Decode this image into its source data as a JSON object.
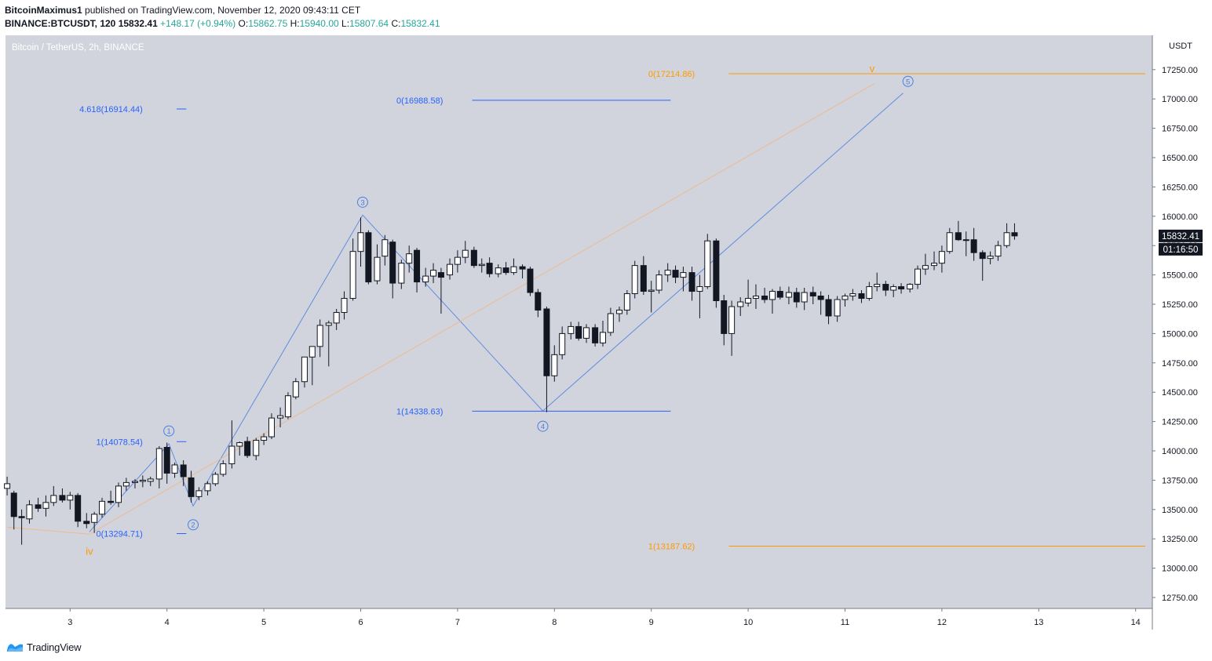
{
  "header": {
    "author": "BitcoinMaximus1",
    "published_text": "published on TradingView.com, November 12, 2020 09:43:11 CET",
    "symbol": "BINANCE:BTCUSDT, 120",
    "last": "15832.41",
    "change": "+148.17 (+0.94%)",
    "o_label": "O:",
    "o": "15862.75",
    "h_label": "H:",
    "h": "15940.00",
    "l_label": "L:",
    "l": "15807.64",
    "c_label": "C:",
    "c": "15832.41"
  },
  "footer": {
    "brand": "TradingView",
    "logo_icon": "tradingview-logo-icon"
  },
  "colors": {
    "plot_bg": "#d1d4dc",
    "up_body": "#ffffff",
    "down_body": "#131722",
    "wick": "#131722",
    "fib_blue": "#2962ff",
    "fib_orange": "#ff9800",
    "wave_blue": "#4a7fe0",
    "wave_orange": "#f2b680",
    "price_tag": "#131722"
  },
  "chart_data": {
    "type": "candlestick",
    "title": "Bitcoin / TetherUS, 2h, BINANCE",
    "currency": "USDT",
    "x_axis": {
      "unit": "day (Nov 2020)",
      "range": [
        2.35,
        14.1
      ],
      "ticks": [
        3,
        4,
        5,
        6,
        7,
        8,
        9,
        10,
        11,
        12,
        13,
        14
      ]
    },
    "y_axis": {
      "range": [
        12630,
        17500
      ],
      "ticks": [
        "12750.00",
        "13000.00",
        "13250.00",
        "13500.00",
        "13750.00",
        "14000.00",
        "14250.00",
        "14500.00",
        "14750.00",
        "15000.00",
        "15250.00",
        "15500.00",
        "15750.00",
        "16000.00",
        "16250.00",
        "16500.00",
        "16750.00",
        "17000.00",
        "17250.00"
      ]
    },
    "last_price_label": "15832.41",
    "countdown_label": "01:16:50",
    "candles": [
      [
        2.35,
        13680,
        13780,
        13620,
        13720
      ],
      [
        2.42,
        13640,
        13660,
        13330,
        13440
      ],
      [
        2.5,
        13440,
        13500,
        13200,
        13430
      ],
      [
        2.58,
        13420,
        13580,
        13380,
        13540
      ],
      [
        2.67,
        13540,
        13600,
        13480,
        13510
      ],
      [
        2.75,
        13510,
        13620,
        13440,
        13560
      ],
      [
        2.83,
        13560,
        13700,
        13530,
        13620
      ],
      [
        2.92,
        13620,
        13680,
        13560,
        13580
      ],
      [
        3.0,
        13580,
        13650,
        13500,
        13620
      ],
      [
        3.08,
        13620,
        13640,
        13350,
        13400
      ],
      [
        3.17,
        13400,
        13470,
        13340,
        13380
      ],
      [
        3.25,
        13390,
        13480,
        13300,
        13460
      ],
      [
        3.33,
        13460,
        13600,
        13430,
        13570
      ],
      [
        3.42,
        13570,
        13660,
        13540,
        13560
      ],
      [
        3.5,
        13560,
        13730,
        13520,
        13700
      ],
      [
        3.58,
        13700,
        13770,
        13660,
        13730
      ],
      [
        3.67,
        13730,
        13760,
        13680,
        13740
      ],
      [
        3.75,
        13740,
        13790,
        13690,
        13750
      ],
      [
        3.83,
        13740,
        13780,
        13700,
        13760
      ],
      [
        3.92,
        13760,
        14040,
        13680,
        14020
      ],
      [
        4.0,
        14030,
        14070,
        13720,
        13810
      ],
      [
        4.08,
        13810,
        13900,
        13770,
        13880
      ],
      [
        4.17,
        13880,
        13920,
        13700,
        13780
      ],
      [
        4.25,
        13770,
        13830,
        13560,
        13610
      ],
      [
        4.33,
        13610,
        13690,
        13580,
        13660
      ],
      [
        4.42,
        13660,
        13740,
        13620,
        13720
      ],
      [
        4.5,
        13720,
        13820,
        13700,
        13800
      ],
      [
        4.58,
        13800,
        13920,
        13780,
        13890
      ],
      [
        4.67,
        13890,
        14260,
        13850,
        14040
      ],
      [
        4.75,
        14040,
        14080,
        13960,
        14070
      ],
      [
        4.83,
        14080,
        14120,
        13940,
        13960
      ],
      [
        4.92,
        13960,
        14110,
        13920,
        14090
      ],
      [
        5.0,
        14090,
        14150,
        14050,
        14120
      ],
      [
        5.08,
        14120,
        14320,
        14100,
        14280
      ],
      [
        5.17,
        14280,
        14370,
        14200,
        14300
      ],
      [
        5.25,
        14290,
        14500,
        14270,
        14470
      ],
      [
        5.33,
        14460,
        14620,
        14440,
        14590
      ],
      [
        5.42,
        14590,
        14790,
        14540,
        14800
      ],
      [
        5.5,
        14800,
        14880,
        14560,
        14890
      ],
      [
        5.58,
        14890,
        15120,
        14800,
        15070
      ],
      [
        5.67,
        15070,
        15110,
        14720,
        15090
      ],
      [
        5.75,
        15090,
        15210,
        15030,
        15180
      ],
      [
        5.83,
        15180,
        15360,
        15120,
        15300
      ],
      [
        5.92,
        15300,
        15810,
        15280,
        15700
      ],
      [
        6.0,
        15700,
        15990,
        15570,
        15860
      ],
      [
        6.08,
        15860,
        15880,
        15420,
        15440
      ],
      [
        6.17,
        15450,
        15760,
        15420,
        15650
      ],
      [
        6.25,
        15660,
        15840,
        15580,
        15800
      ],
      [
        6.33,
        15780,
        15800,
        15300,
        15430
      ],
      [
        6.42,
        15430,
        15630,
        15380,
        15600
      ],
      [
        6.5,
        15600,
        15750,
        15520,
        15680
      ],
      [
        6.58,
        15710,
        15730,
        15350,
        15440
      ],
      [
        6.67,
        15440,
        15560,
        15400,
        15490
      ],
      [
        6.75,
        15490,
        15600,
        15430,
        15540
      ],
      [
        6.83,
        15520,
        15560,
        15170,
        15480
      ],
      [
        6.92,
        15500,
        15640,
        15460,
        15590
      ],
      [
        7.0,
        15590,
        15710,
        15520,
        15650
      ],
      [
        7.08,
        15650,
        15790,
        15600,
        15710
      ],
      [
        7.17,
        15710,
        15740,
        15560,
        15580
      ],
      [
        7.25,
        15580,
        15640,
        15520,
        15590
      ],
      [
        7.33,
        15600,
        15650,
        15480,
        15510
      ],
      [
        7.42,
        15510,
        15590,
        15480,
        15560
      ],
      [
        7.5,
        15560,
        15610,
        15500,
        15520
      ],
      [
        7.58,
        15520,
        15640,
        15500,
        15570
      ],
      [
        7.67,
        15570,
        15590,
        15470,
        15550
      ],
      [
        7.75,
        15550,
        15570,
        15320,
        15350
      ],
      [
        7.83,
        15350,
        15380,
        15140,
        15200
      ],
      [
        7.92,
        15210,
        15230,
        14330,
        14640
      ],
      [
        8.0,
        14640,
        14900,
        14590,
        14820
      ],
      [
        8.08,
        14820,
        15060,
        14780,
        15000
      ],
      [
        8.17,
        15000,
        15100,
        14950,
        15060
      ],
      [
        8.25,
        15060,
        15100,
        14940,
        14960
      ],
      [
        8.33,
        14960,
        15080,
        14920,
        15050
      ],
      [
        8.42,
        15050,
        15080,
        14890,
        14920
      ],
      [
        8.5,
        14920,
        15110,
        14890,
        15010
      ],
      [
        8.58,
        15010,
        15220,
        14980,
        15170
      ],
      [
        8.67,
        15170,
        15230,
        15100,
        15200
      ],
      [
        8.75,
        15200,
        15370,
        15160,
        15340
      ],
      [
        8.83,
        15340,
        15620,
        15300,
        15580
      ],
      [
        8.92,
        15580,
        15660,
        15330,
        15360
      ],
      [
        9.0,
        15360,
        15450,
        15180,
        15370
      ],
      [
        9.08,
        15370,
        15540,
        15340,
        15500
      ],
      [
        9.17,
        15500,
        15600,
        15440,
        15540
      ],
      [
        9.25,
        15540,
        15580,
        15430,
        15480
      ],
      [
        9.33,
        15480,
        15570,
        15360,
        15520
      ],
      [
        9.42,
        15520,
        15570,
        15280,
        15360
      ],
      [
        9.5,
        15360,
        15500,
        15130,
        15400
      ],
      [
        9.58,
        15400,
        15850,
        15380,
        15790
      ],
      [
        9.67,
        15790,
        15810,
        15220,
        15280
      ],
      [
        9.75,
        15280,
        15330,
        14900,
        15000
      ],
      [
        9.83,
        15000,
        15280,
        14810,
        15230
      ],
      [
        9.92,
        15230,
        15310,
        15150,
        15270
      ],
      [
        10.0,
        15260,
        15460,
        15230,
        15300
      ],
      [
        10.08,
        15300,
        15420,
        15210,
        15320
      ],
      [
        10.17,
        15320,
        15390,
        15260,
        15290
      ],
      [
        10.25,
        15290,
        15380,
        15170,
        15360
      ],
      [
        10.33,
        15360,
        15400,
        15290,
        15310
      ],
      [
        10.42,
        15310,
        15400,
        15250,
        15350
      ],
      [
        10.5,
        15350,
        15390,
        15220,
        15270
      ],
      [
        10.58,
        15270,
        15390,
        15200,
        15350
      ],
      [
        10.67,
        15350,
        15400,
        15250,
        15320
      ],
      [
        10.75,
        15320,
        15360,
        15160,
        15290
      ],
      [
        10.83,
        15290,
        15330,
        15080,
        15150
      ],
      [
        10.92,
        15150,
        15320,
        15100,
        15290
      ],
      [
        11.0,
        15290,
        15340,
        15230,
        15320
      ],
      [
        11.08,
        15320,
        15380,
        15280,
        15340
      ],
      [
        11.17,
        15340,
        15370,
        15260,
        15300
      ],
      [
        11.25,
        15300,
        15440,
        15280,
        15400
      ],
      [
        11.33,
        15400,
        15520,
        15360,
        15420
      ],
      [
        11.42,
        15420,
        15450,
        15320,
        15370
      ],
      [
        11.5,
        15370,
        15420,
        15310,
        15400
      ],
      [
        11.58,
        15400,
        15430,
        15340,
        15380
      ],
      [
        11.67,
        15380,
        15430,
        15350,
        15420
      ],
      [
        11.75,
        15420,
        15580,
        15380,
        15550
      ],
      [
        11.83,
        15550,
        15680,
        15500,
        15580
      ],
      [
        11.92,
        15580,
        15700,
        15540,
        15600
      ],
      [
        12.0,
        15600,
        15750,
        15520,
        15700
      ],
      [
        12.08,
        15700,
        15900,
        15680,
        15860
      ],
      [
        12.17,
        15860,
        15960,
        15790,
        15800
      ],
      [
        12.25,
        15800,
        15870,
        15660,
        15800
      ],
      [
        12.33,
        15800,
        15900,
        15620,
        15690
      ],
      [
        12.42,
        15690,
        15710,
        15450,
        15640
      ],
      [
        12.5,
        15640,
        15700,
        15590,
        15660
      ],
      [
        12.58,
        15660,
        15790,
        15620,
        15750
      ],
      [
        12.67,
        15750,
        15940,
        15730,
        15860
      ],
      [
        12.75,
        15860,
        15940,
        15800,
        15832.41
      ]
    ],
    "fib_levels": [
      {
        "label": "0(17214.86)",
        "price": 17214.86,
        "color": "orange",
        "from": 9.8,
        "to": 14.1,
        "label_at": 9.45
      },
      {
        "label": "1(13187.62)",
        "price": 13187.62,
        "color": "orange",
        "from": 9.8,
        "to": 14.1,
        "label_at": 9.45
      },
      {
        "label": "0(16988.58)",
        "price": 16988.58,
        "color": "blue",
        "from": 7.15,
        "to": 9.2,
        "label_at": 6.85
      },
      {
        "label": "1(14338.63)",
        "price": 14338.63,
        "color": "blue",
        "from": 7.15,
        "to": 9.2,
        "label_at": 6.85
      },
      {
        "label": "4.618(16914.44)",
        "price": 16914.44,
        "color": "blue",
        "from": 4.1,
        "to": 4.2,
        "label_at": 3.75
      },
      {
        "label": "1(14078.54)",
        "price": 14078.54,
        "color": "blue",
        "from": 4.1,
        "to": 4.2,
        "label_at": 3.75
      },
      {
        "label": "0(13294.71)",
        "price": 13294.71,
        "color": "blue",
        "from": 4.1,
        "to": 4.2,
        "label_at": 3.75
      }
    ],
    "wave_paths": [
      {
        "color": "blue",
        "points": [
          [
            3.2,
            13310
          ],
          [
            4.02,
            14060
          ],
          [
            4.27,
            13530
          ],
          [
            6.02,
            16010
          ],
          [
            7.88,
            14340
          ],
          [
            11.6,
            17050
          ]
        ]
      },
      {
        "color": "orange",
        "points": [
          [
            2.35,
            13350
          ],
          [
            3.2,
            13290
          ],
          [
            11.3,
            17130
          ]
        ]
      }
    ],
    "wave_labels": [
      {
        "text": "1",
        "circled": true,
        "color": "blue",
        "x": 4.02,
        "y": 14170
      },
      {
        "text": "2",
        "circled": true,
        "color": "blue",
        "x": 4.27,
        "y": 13370
      },
      {
        "text": "3",
        "circled": true,
        "color": "blue",
        "x": 6.02,
        "y": 16120
      },
      {
        "text": "4",
        "circled": true,
        "color": "blue",
        "x": 7.88,
        "y": 14210
      },
      {
        "text": "5",
        "circled": true,
        "color": "blue",
        "x": 11.65,
        "y": 17150
      },
      {
        "text": "iv",
        "circled": false,
        "color": "orange",
        "x": 3.2,
        "y": 13140
      },
      {
        "text": "v",
        "circled": false,
        "color": "orange",
        "x": 11.28,
        "y": 17255
      }
    ]
  }
}
